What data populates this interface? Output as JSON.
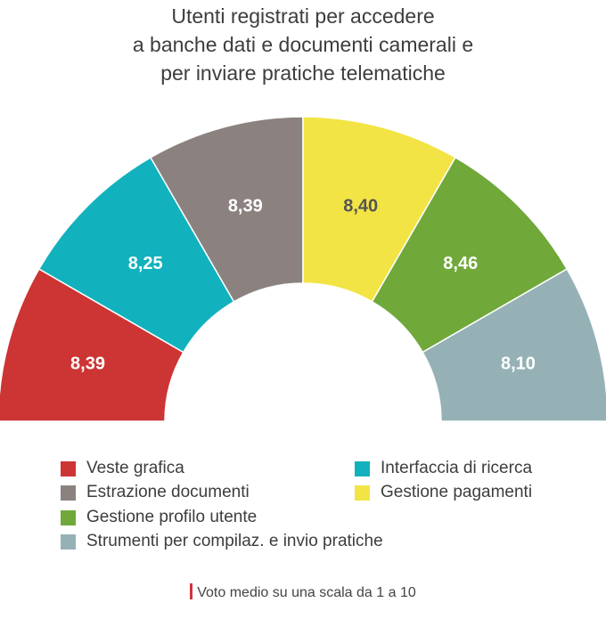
{
  "chart_data": {
    "type": "pie",
    "shape": "half-donut",
    "title_lines": [
      "Utenti registrati per accedere",
      "a banche dati e documenti camerali e",
      "per inviare pratiche telematiche"
    ],
    "categories": [
      "Veste grafica",
      "Interfaccia di ricerca",
      "Estrazione documenti",
      "Gestione pagamenti",
      "Gestione profilo utente",
      "Strumenti per compilaz. e invio pratiche"
    ],
    "values": [
      8.39,
      8.25,
      8.39,
      8.4,
      8.46,
      8.1
    ],
    "value_labels": [
      "8,39",
      "8,25",
      "8,39",
      "8,40",
      "8,46",
      "8,10"
    ],
    "colors": [
      "#cd3434",
      "#11b2bd",
      "#8b8280",
      "#f2e445",
      "#70a83a",
      "#95b1b6"
    ],
    "label_colors": [
      "#ffffff",
      "#ffffff",
      "#ffffff",
      "#555555",
      "#ffffff",
      "#ffffff"
    ],
    "legend_order": [
      0,
      1,
      2,
      3,
      4,
      5
    ],
    "note": "Voto medio su una scala da 1 a 10"
  }
}
